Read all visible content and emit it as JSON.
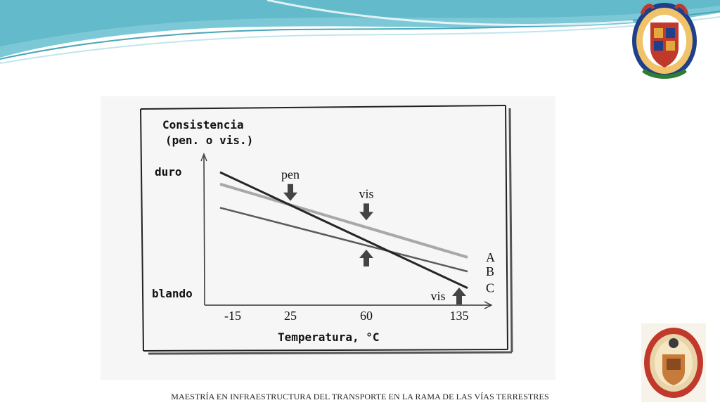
{
  "slide": {
    "footer": "MAESTRÍA EN INFRAESTRUCTURA DEL TRANSPORTE EN LA RAMA DE LAS VÍAS TERRESTRES",
    "logo_top_icon": "university-seal-icon",
    "logo_bottom_icon": "faculty-seal-icon",
    "colors": {
      "wave_dark": "#5fb8c9",
      "wave_light": "#bfe6ee",
      "seal_red": "#c0392b",
      "seal_gold": "#e3a83c"
    }
  },
  "chart_data": {
    "type": "line",
    "ylabel_line1": "Consistencia",
    "ylabel_line2": "(pen. o vis.)",
    "xlabel": "Temperatura, °C",
    "y_top_label": "duro",
    "y_bottom_label": "blando",
    "x_ticks": [
      "-15",
      "25",
      "60",
      "135"
    ],
    "series": [
      {
        "name": "A",
        "color": "#a8a8a8",
        "values": [
          0.9,
          0.28
        ]
      },
      {
        "name": "B",
        "color": "#5a5a5a",
        "values": [
          0.7,
          0.16
        ]
      },
      {
        "name": "C",
        "color": "#262626",
        "values": [
          1.0,
          0.02
        ]
      }
    ],
    "annotations": [
      {
        "text": "pen",
        "x": "25",
        "arrow": "down"
      },
      {
        "text": "vis",
        "x": "60",
        "arrow": "down"
      },
      {
        "text": "",
        "x": "60",
        "arrow": "up"
      },
      {
        "text": "vis",
        "x": "135",
        "arrow": "up"
      }
    ]
  }
}
